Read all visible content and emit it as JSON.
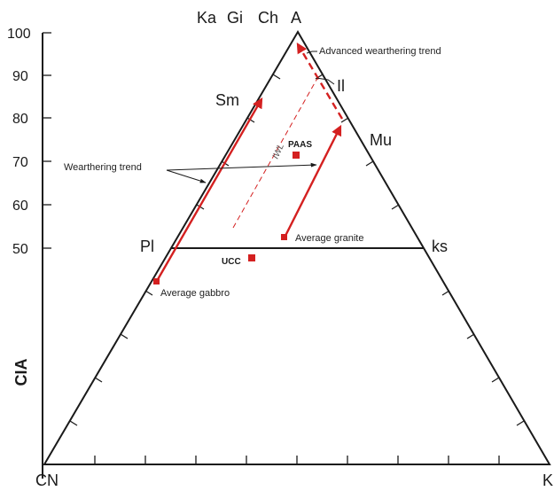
{
  "apex_labels": {
    "apex_a": "A",
    "ka": "Ka",
    "gi": "Gi",
    "ch": "Ch"
  },
  "corner_labels": {
    "cn": "CN",
    "k": "K"
  },
  "y_ticks": [
    "100",
    "90",
    "80",
    "70",
    "60",
    "50"
  ],
  "axis_title": "CIA",
  "minerals": {
    "sm": "Sm",
    "pl": "Pl",
    "mu": "Mu",
    "ks": "ks",
    "il": "Il"
  },
  "annotations": {
    "advanced_trend": "Advanced wearthering trend",
    "weathering_trend": "Wearthering trend",
    "iwl": "IWL",
    "average_granite": "Average granite",
    "average_gabbro": "Average gabbro"
  },
  "points": {
    "paas": "PAAS",
    "ucc": "UCC"
  },
  "colors": {
    "trend_red": "#d42020",
    "line_black": "#1a1a1a"
  }
}
